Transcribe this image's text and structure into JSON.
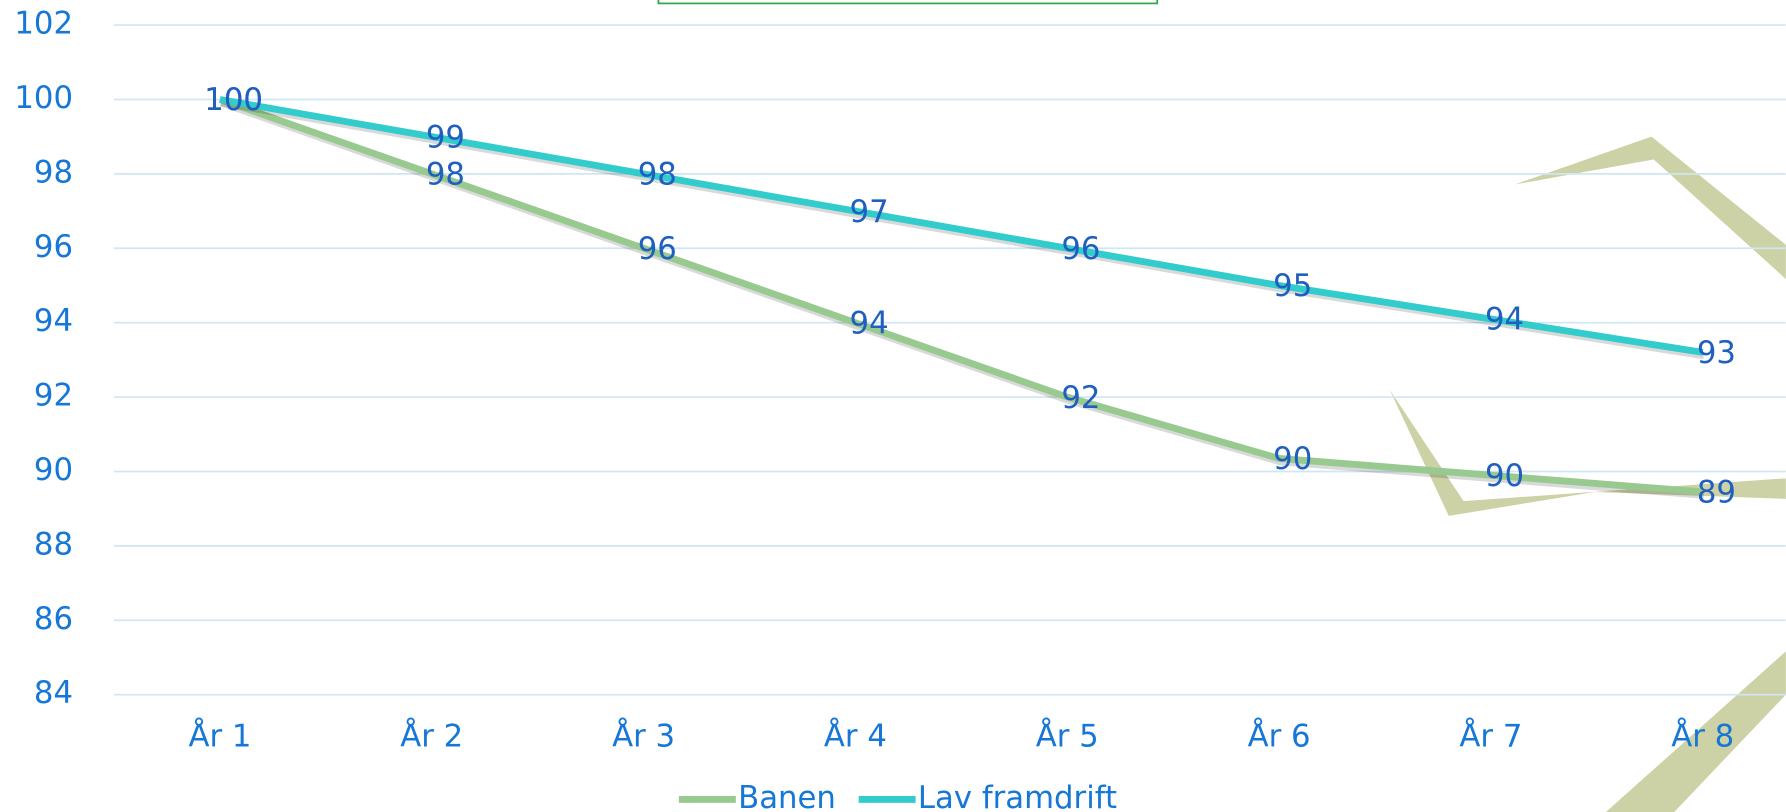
{
  "chart_data": {
    "type": "line",
    "categories": [
      "År 1",
      "År 2",
      "År 3",
      "År 4",
      "År 5",
      "År 6",
      "År 7",
      "År 8"
    ],
    "series": [
      {
        "name": "Banen",
        "color": "#98c98f",
        "values": [
          100,
          98,
          96,
          94,
          92,
          90.35,
          89.9,
          89.45
        ],
        "value_labels": [
          "100",
          "98",
          "96",
          "94",
          "92",
          "90",
          "90",
          "89"
        ]
      },
      {
        "name": "Lav framdrift",
        "color": "#33cccc",
        "values": [
          100,
          99,
          98,
          97,
          96,
          95,
          94.1,
          93.2
        ],
        "value_labels": [
          "100",
          "99",
          "98",
          "97",
          "96",
          "95",
          "94",
          "93"
        ]
      }
    ],
    "ylim": [
      84,
      102
    ],
    "yticks": [
      84,
      86,
      88,
      90,
      92,
      94,
      96,
      98,
      100,
      102
    ],
    "grid": true,
    "legend": "bottom"
  }
}
